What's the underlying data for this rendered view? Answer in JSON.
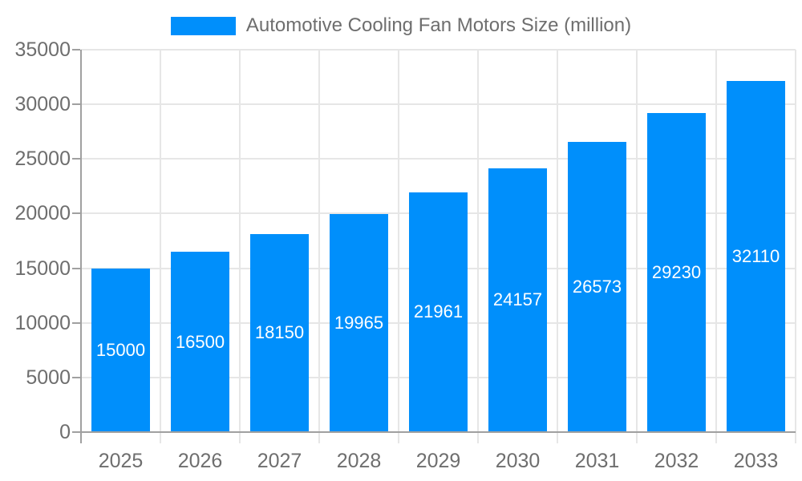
{
  "chart_data": {
    "type": "bar",
    "title": "Automotive Cooling Fan Motors Size (million)",
    "legend_entries": [
      "Automotive Cooling Fan Motors Size (million)"
    ],
    "legend_position": "top-center",
    "categories": [
      "2025",
      "2026",
      "2027",
      "2028",
      "2029",
      "2030",
      "2031",
      "2032",
      "2033"
    ],
    "values": [
      15000,
      16500,
      18150,
      19965,
      21961,
      24157,
      26573,
      29230,
      32110
    ],
    "bar_labels": [
      "15000",
      "16500",
      "18150",
      "19965",
      "21961",
      "24157",
      "26573",
      "29230",
      "32110"
    ],
    "bar_labels_position": "inside-center",
    "xlabel": "",
    "ylabel": "",
    "ylim": [
      0,
      35000
    ],
    "y_ticks": [
      0,
      5000,
      10000,
      15000,
      20000,
      25000,
      30000,
      35000
    ],
    "grid": true,
    "colors": {
      "bar": "#008FFB",
      "bar_label_text": "#FFFFFF",
      "axis_text": "#6E6E6E",
      "title_text": "#6E6E6E",
      "grid_line": "#E6E6E6",
      "axis_line": "#A0A0A0",
      "background": "#FFFFFF"
    }
  }
}
